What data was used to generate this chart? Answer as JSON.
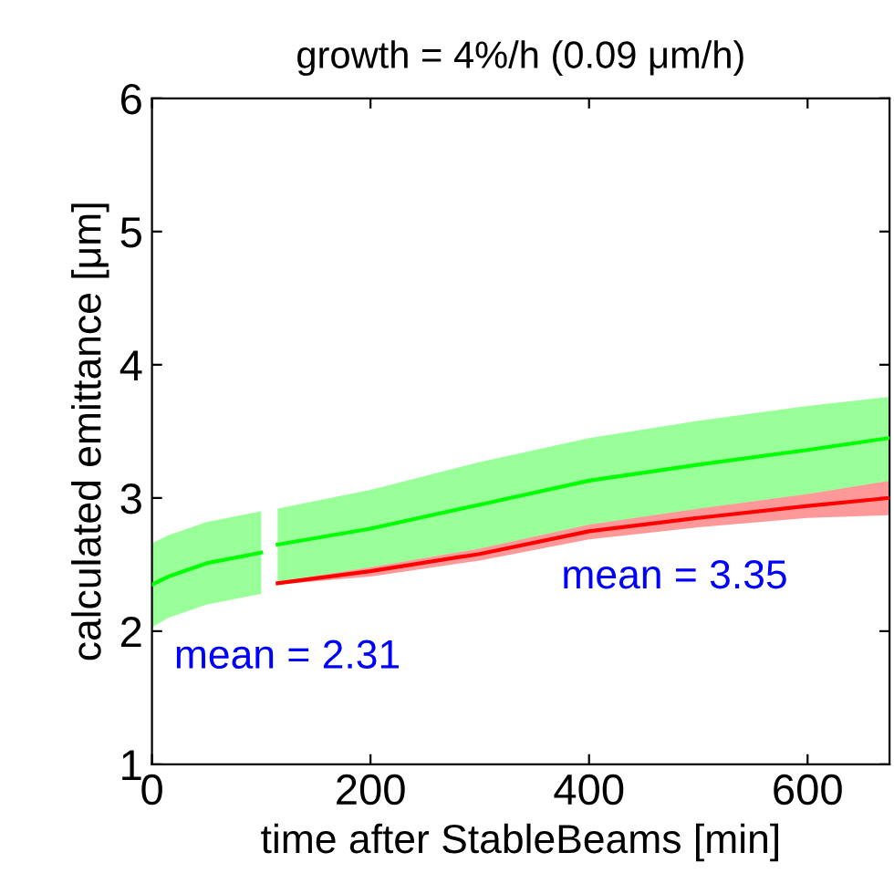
{
  "chart_data": {
    "type": "line",
    "title": "growth = 4%/h (0.09 μm/h)",
    "xlabel": "time after StableBeams [min]",
    "ylabel": "calculated emittance [μm]",
    "x": [
      0,
      15,
      50,
      100,
      104,
      115,
      200,
      300,
      400,
      500,
      600,
      675
    ],
    "series": [
      {
        "color": "#ff0000",
        "lower": [
          null,
          null,
          null,
          null,
          null,
          2.35,
          2.41,
          2.53,
          2.69,
          2.78,
          2.85,
          2.87
        ],
        "upper": [
          null,
          null,
          null,
          null,
          null,
          2.37,
          2.48,
          2.62,
          2.8,
          2.92,
          3.03,
          3.13
        ],
        "values": [
          null,
          null,
          null,
          null,
          null,
          2.36,
          2.45,
          2.58,
          2.75,
          2.85,
          2.94,
          3.0
        ]
      },
      {
        "color": "#00ff00",
        "lower": [
          2.03,
          2.1,
          2.2,
          2.28,
          null,
          2.37,
          2.48,
          2.62,
          2.8,
          2.92,
          3.03,
          3.13
        ],
        "upper": [
          2.66,
          2.72,
          2.82,
          2.9,
          null,
          2.92,
          3.06,
          3.27,
          3.45,
          3.58,
          3.69,
          3.76
        ],
        "values": [
          2.35,
          2.41,
          2.51,
          2.59,
          null,
          2.65,
          2.77,
          2.95,
          3.13,
          3.25,
          3.36,
          3.45
        ]
      }
    ],
    "annotations": [
      "mean = 2.31",
      "mean = 3.35"
    ],
    "xlim": [
      0,
      675
    ],
    "xticks": [
      0,
      200,
      400,
      600
    ],
    "ylim": [
      1,
      6
    ],
    "yticks": [
      1,
      2,
      3,
      4,
      5,
      6
    ],
    "grid": false,
    "legend": false
  }
}
